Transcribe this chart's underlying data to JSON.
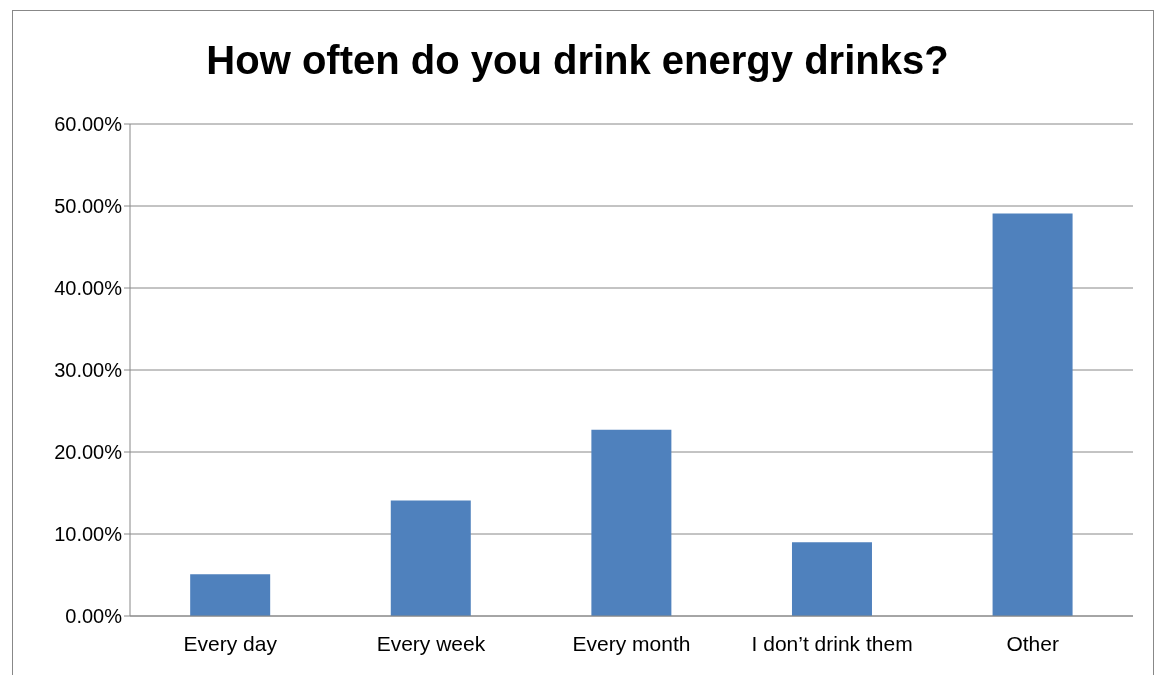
{
  "chart_data": {
    "type": "bar",
    "title": "How often do you drink energy drinks?",
    "categories": [
      "Every day",
      "Every week",
      "Every month",
      "I don’t drink them",
      "Other"
    ],
    "values": [
      5.1,
      14.1,
      22.7,
      9.0,
      49.1
    ],
    "color": "#4f81bd",
    "ylim": [
      0,
      60
    ],
    "yticks": [
      {
        "value": 0,
        "label": "0.00%"
      },
      {
        "value": 10,
        "label": "10.00%"
      },
      {
        "value": 20,
        "label": "20.00%"
      },
      {
        "value": 30,
        "label": "30.00%"
      },
      {
        "value": 40,
        "label": "40.00%"
      },
      {
        "value": 50,
        "label": "50.00%"
      },
      {
        "value": 60,
        "label": "60.00%"
      }
    ],
    "grid": "y",
    "legend": false
  }
}
